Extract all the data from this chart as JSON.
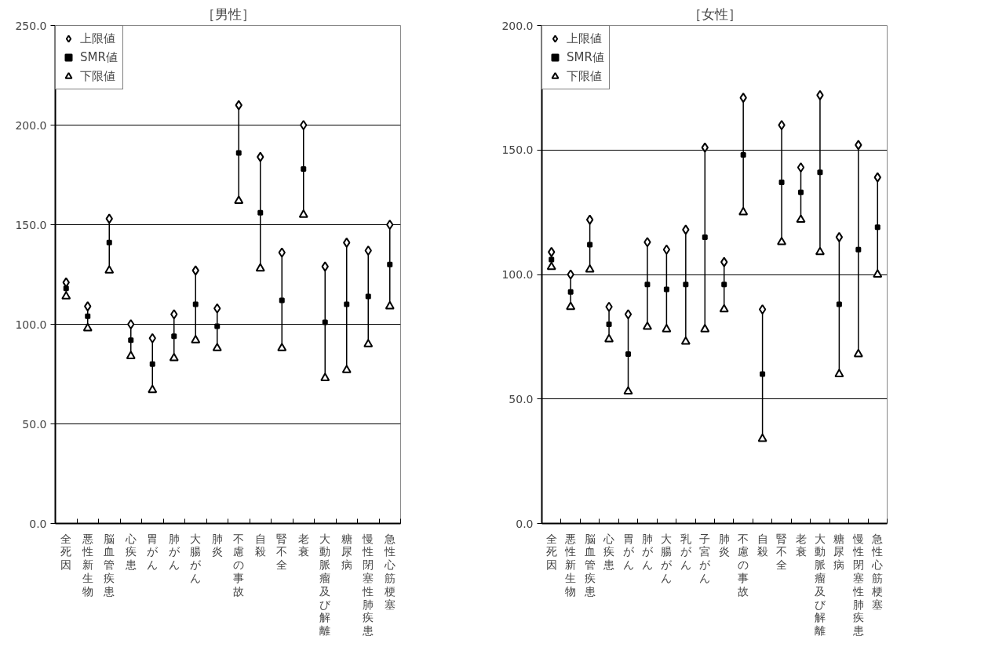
{
  "chart_data": [
    {
      "type": "scatter",
      "title": "［男性］",
      "categories": [
        "全死因",
        "悪性新生物",
        "脳血管疾患",
        "心疾患",
        "胃がん",
        "肺がん",
        "大腸がん",
        "肺炎",
        "不慮の事故",
        "自殺",
        "腎不全",
        "老衰",
        "大動脈瘤及び解離",
        "糖尿病",
        "慢性閉塞性肺疾患",
        "急性心筋梗塞"
      ],
      "series": [
        {
          "name": "上限値",
          "color": "#000000",
          "marker": "diamond",
          "values": [
            121,
            109,
            153,
            100,
            93,
            105,
            127,
            108,
            210,
            184,
            136,
            200,
            129,
            141,
            137,
            150
          ]
        },
        {
          "name": "SMR値",
          "color": "#000000",
          "marker": "square",
          "values": [
            118,
            104,
            141,
            92,
            80,
            94,
            110,
            99,
            186,
            156,
            112,
            178,
            101,
            110,
            114,
            130
          ]
        },
        {
          "name": "下限値",
          "color": "#000000",
          "marker": "triangle",
          "values": [
            114,
            98,
            127,
            84,
            67,
            83,
            92,
            88,
            162,
            128,
            88,
            155,
            73,
            77,
            90,
            109
          ]
        }
      ],
      "ylim": [
        0,
        250
      ],
      "yticks": [
        {
          "value": 0,
          "label": "0.0"
        },
        {
          "value": 50,
          "label": "50.0"
        },
        {
          "value": 100,
          "label": "100.0"
        },
        {
          "value": 150,
          "label": "150.0"
        },
        {
          "value": 200,
          "label": "200.0"
        },
        {
          "value": 250,
          "label": "250.0"
        }
      ],
      "grid": "y",
      "legend": "top left"
    },
    {
      "type": "scatter",
      "title": "［女性］",
      "categories": [
        "全死因",
        "悪性新生物",
        "脳血管疾患",
        "心疾患",
        "胃がん",
        "肺がん",
        "大腸がん",
        "乳がん",
        "子宮がん",
        "肺炎",
        "不慮の事故",
        "自殺",
        "腎不全",
        "老衰",
        "大動脈瘤及び解離",
        "糖尿病",
        "慢性閉塞性肺疾患",
        "急性心筋梗塞"
      ],
      "series": [
        {
          "name": "上限値",
          "color": "#000000",
          "marker": "diamond",
          "values": [
            109,
            100,
            122,
            87,
            84,
            113,
            110,
            118,
            151,
            105,
            171,
            86,
            160,
            143,
            172,
            115,
            152,
            139
          ]
        },
        {
          "name": "SMR値",
          "color": "#000000",
          "marker": "square",
          "values": [
            106,
            93,
            112,
            80,
            68,
            96,
            94,
            96,
            115,
            96,
            148,
            60,
            137,
            133,
            141,
            88,
            110,
            119
          ]
        },
        {
          "name": "下限値",
          "color": "#000000",
          "marker": "triangle",
          "values": [
            103,
            87,
            102,
            74,
            53,
            79,
            78,
            73,
            78,
            86,
            125,
            34,
            113,
            122,
            109,
            60,
            68,
            100
          ]
        }
      ],
      "ylim": [
        0,
        200
      ],
      "yticks": [
        {
          "value": 0,
          "label": "0.0"
        },
        {
          "value": 50,
          "label": "50.0"
        },
        {
          "value": 100,
          "label": "100.0"
        },
        {
          "value": 150,
          "label": "150.0"
        },
        {
          "value": 200,
          "label": "200.0"
        }
      ],
      "grid": "y",
      "legend": "top left"
    }
  ]
}
